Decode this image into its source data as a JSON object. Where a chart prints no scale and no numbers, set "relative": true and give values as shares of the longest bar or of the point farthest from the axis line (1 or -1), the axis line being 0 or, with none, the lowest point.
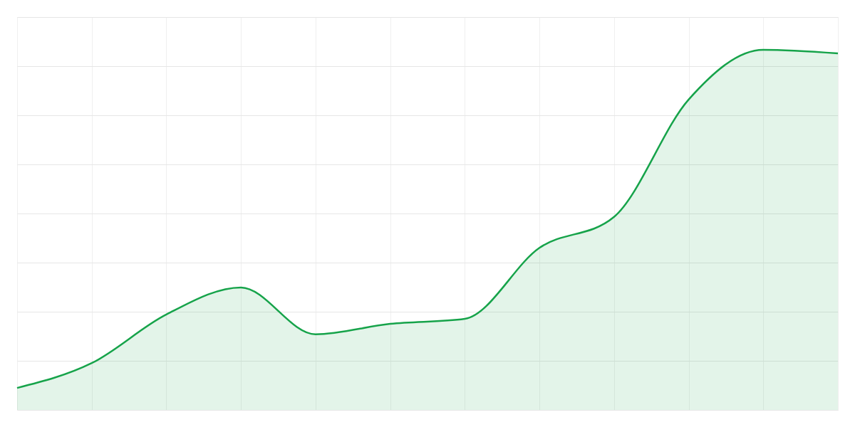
{
  "chart_data": {
    "type": "area",
    "relative": true,
    "grid": true,
    "color": "#16a34a",
    "categories": [
      null,
      null,
      null,
      null,
      null,
      null,
      null,
      null,
      null,
      null,
      null,
      null
    ],
    "values": [
      0.061,
      0.13,
      0.265,
      0.34,
      0.21,
      0.239,
      0.253,
      0.45,
      0.536,
      0.862,
      1,
      0.99
    ]
  }
}
